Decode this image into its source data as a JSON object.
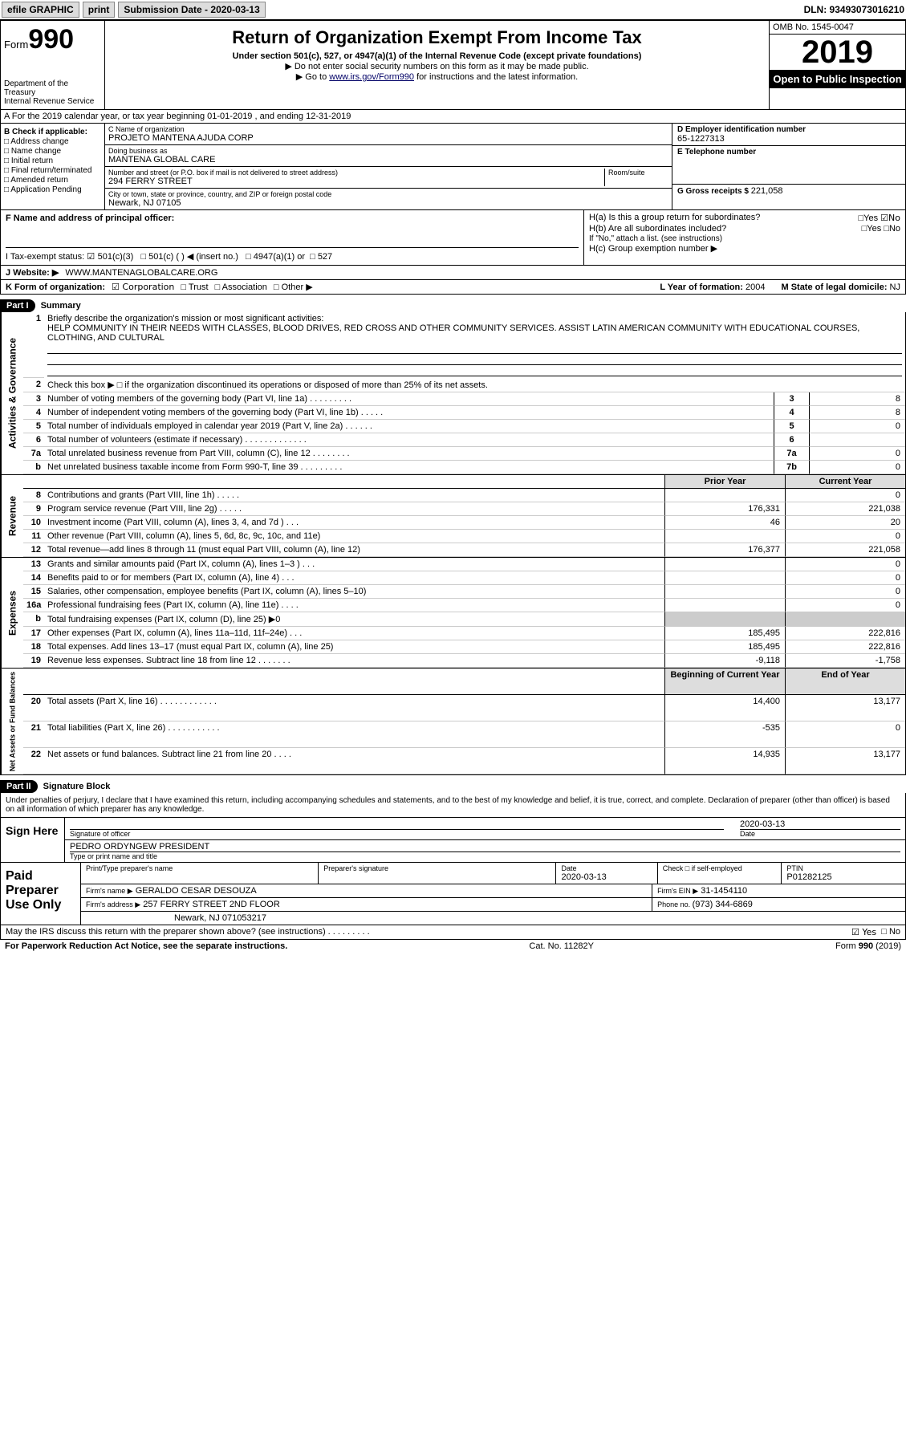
{
  "top": {
    "efile": "efile GRAPHIC",
    "print": "print",
    "sub_label": "Submission Date - ",
    "sub_date": "2020-03-13",
    "dln": "DLN: 93493073016210"
  },
  "header": {
    "form": "Form",
    "formno": "990",
    "dept": "Department of the Treasury\nInternal Revenue Service",
    "title": "Return of Organization Exempt From Income Tax",
    "sub1": "Under section 501(c), 527, or 4947(a)(1) of the Internal Revenue Code (except private foundations)",
    "sub2": "▶ Do not enter social security numbers on this form as it may be made public.",
    "sub3": "▶ Go to ",
    "link": "www.irs.gov/Form990",
    "sub3b": " for instructions and the latest information.",
    "omb": "OMB No. 1545-0047",
    "year": "2019",
    "open": "Open to Public Inspection"
  },
  "row_a": "A For the 2019 calendar year, or tax year beginning 01-01-2019    , and ending 12-31-2019",
  "b": {
    "title": "B Check if applicable:",
    "addr": "Address change",
    "name": "Name change",
    "init": "Initial return",
    "final": "Final return/terminated",
    "amend": "Amended return",
    "app": "Application Pending"
  },
  "c": {
    "name_lbl": "C Name of organization",
    "name": "PROJETO MANTENA AJUDA CORP",
    "dba_lbl": "Doing business as",
    "dba": "MANTENA GLOBAL CARE",
    "street_lbl": "Number and street (or P.O. box if mail is not delivered to street address)",
    "street": "294 FERRY STREET",
    "room_lbl": "Room/suite",
    "city_lbl": "City or town, state or province, country, and ZIP or foreign postal code",
    "city": "Newark, NJ  07105",
    "f_lbl": "F Name and address of principal officer:"
  },
  "d": {
    "lbl": "D Employer identification number",
    "val": "65-1227313"
  },
  "e": {
    "lbl": "E Telephone number",
    "val": ""
  },
  "g": {
    "lbl": "G Gross receipts $ ",
    "val": "221,058"
  },
  "h": {
    "a": "H(a)  Is this a group return for subordinates?",
    "a_yes": "Yes",
    "a_no": "No",
    "b": "H(b)  Are all subordinates included?",
    "b_yes": "Yes",
    "b_no": "No",
    "b_note": "If \"No,\" attach a list. (see instructions)",
    "c": "H(c)  Group exemption number ▶"
  },
  "i": {
    "lbl": "I   Tax-exempt status:",
    "o1": "501(c)(3)",
    "o2": "501(c) (   ) ◀ (insert no.)",
    "o3": "4947(a)(1) or",
    "o4": "527"
  },
  "j": {
    "lbl": "J   Website: ▶",
    "val": "WWW.MANTENAGLOBALCARE.ORG"
  },
  "k": {
    "lbl": "K Form of organization:",
    "o1": "Corporation",
    "o2": "Trust",
    "o3": "Association",
    "o4": "Other ▶",
    "l_lbl": "L Year of formation: ",
    "l_val": "2004",
    "m_lbl": "M State of legal domicile: ",
    "m_val": "NJ"
  },
  "part1": {
    "hdr": "Part I",
    "title": "Summary"
  },
  "mission": {
    "n": "1",
    "lbl": "Briefly describe the organization's mission or most significant activities:",
    "txt": "HELP COMMUNITY IN THEIR NEEDS WITH CLASSES, BLOOD DRIVES, RED CROSS AND OTHER COMMUNITY SERVICES. ASSIST LATIN AMERICAN COMMUNITY WITH EDUCATIONAL COURSES, CLOTHING, AND CULTURAL"
  },
  "ag": {
    "vlabel": "Activities & Governance",
    "rows": [
      {
        "n": "2",
        "d": "Check this box ▶ □  if the organization discontinued its operations or disposed of more than 25% of its net assets.",
        "box": "",
        "v": ""
      },
      {
        "n": "3",
        "d": "Number of voting members of the governing body (Part VI, line 1a)   .    .    .    .    .    .    .    .    .",
        "box": "3",
        "v": "8"
      },
      {
        "n": "4",
        "d": "Number of independent voting members of the governing body (Part VI, line 1b)   .    .    .    .    .",
        "box": "4",
        "v": "8"
      },
      {
        "n": "5",
        "d": "Total number of individuals employed in calendar year 2019 (Part V, line 2a)   .    .    .    .    .    .",
        "box": "5",
        "v": "0"
      },
      {
        "n": "6",
        "d": "Total number of volunteers (estimate if necessary)   .    .    .    .    .    .    .    .    .    .    .    .    .",
        "box": "6",
        "v": ""
      },
      {
        "n": "7a",
        "d": "Total unrelated business revenue from Part VIII, column (C), line 12   .    .    .    .    .    .    .    .",
        "box": "7a",
        "v": "0"
      },
      {
        "n": "b",
        "d": "Net unrelated business taxable income from Form 990-T, line 39   .    .    .    .    .    .    .    .    .",
        "box": "7b",
        "v": "0"
      }
    ]
  },
  "fin_hdr": {
    "py": "Prior Year",
    "cy": "Current Year"
  },
  "rev": {
    "vlabel": "Revenue",
    "rows": [
      {
        "n": "8",
        "d": "Contributions and grants (Part VIII, line 1h)   .    .    .    .    .",
        "py": "",
        "cy": "0"
      },
      {
        "n": "9",
        "d": "Program service revenue (Part VIII, line 2g)   .    .    .    .    .",
        "py": "176,331",
        "cy": "221,038"
      },
      {
        "n": "10",
        "d": "Investment income (Part VIII, column (A), lines 3, 4, and 7d )   .    .    .",
        "py": "46",
        "cy": "20"
      },
      {
        "n": "11",
        "d": "Other revenue (Part VIII, column (A), lines 5, 6d, 8c, 9c, 10c, and 11e)",
        "py": "",
        "cy": "0"
      },
      {
        "n": "12",
        "d": "Total revenue—add lines 8 through 11 (must equal Part VIII, column (A), line 12)",
        "py": "176,377",
        "cy": "221,058"
      }
    ]
  },
  "exp": {
    "vlabel": "Expenses",
    "rows": [
      {
        "n": "13",
        "d": "Grants and similar amounts paid (Part IX, column (A), lines 1–3 )   .    .    .",
        "py": "",
        "cy": "0"
      },
      {
        "n": "14",
        "d": "Benefits paid to or for members (Part IX, column (A), line 4)   .    .    .",
        "py": "",
        "cy": "0"
      },
      {
        "n": "15",
        "d": "Salaries, other compensation, employee benefits (Part IX, column (A), lines 5–10)",
        "py": "",
        "cy": "0"
      },
      {
        "n": "16a",
        "d": "Professional fundraising fees (Part IX, column (A), line 11e)   .    .    .    .",
        "py": "",
        "cy": "0"
      },
      {
        "n": "b",
        "d": "Total fundraising expenses (Part IX, column (D), line 25) ▶0",
        "py": "SHADE",
        "cy": "SHADE"
      },
      {
        "n": "17",
        "d": "Other expenses (Part IX, column (A), lines 11a–11d, 11f–24e)   .    .    .",
        "py": "185,495",
        "cy": "222,816"
      },
      {
        "n": "18",
        "d": "Total expenses. Add lines 13–17 (must equal Part IX, column (A), line 25)",
        "py": "185,495",
        "cy": "222,816"
      },
      {
        "n": "19",
        "d": "Revenue less expenses. Subtract line 18 from line 12 .    .    .    .    .    .    .",
        "py": "-9,118",
        "cy": "-1,758"
      }
    ]
  },
  "na_hdr": {
    "py": "Beginning of Current Year",
    "cy": "End of Year"
  },
  "na": {
    "vlabel": "Net Assets or Fund Balances",
    "rows": [
      {
        "n": "20",
        "d": "Total assets (Part X, line 16)   .    .    .    .    .    .    .    .    .    .    .    .",
        "py": "14,400",
        "cy": "13,177"
      },
      {
        "n": "21",
        "d": "Total liabilities (Part X, line 26)   .    .    .    .    .    .    .    .    .    .    .",
        "py": "-535",
        "cy": "0"
      },
      {
        "n": "22",
        "d": "Net assets or fund balances. Subtract line 21 from line 20   .    .    .    .",
        "py": "14,935",
        "cy": "13,177"
      }
    ]
  },
  "part2": {
    "hdr": "Part II",
    "title": "Signature Block"
  },
  "sig": {
    "decl": "Under penalties of perjury, I declare that I have examined this return, including accompanying schedules and statements, and to the best of my knowledge and belief, it is true, correct, and complete. Declaration of preparer (other than officer) is based on all information of which preparer has any knowledge.",
    "sign_here": "Sign Here",
    "sig_officer": "Signature of officer",
    "date": "2020-03-13",
    "date_lbl": "Date",
    "name": "PEDRO ORDYNGEW  PRESIDENT",
    "name_lbl": "Type or print name and title"
  },
  "prep": {
    "left": "Paid Preparer Use Only",
    "pt_name_lbl": "Print/Type preparer's name",
    "sig_lbl": "Preparer's signature",
    "date_lbl": "Date",
    "date": "2020-03-13",
    "chk_lbl": "Check □ if self-employed",
    "ptin_lbl": "PTIN",
    "ptin": "P01282125",
    "firm_name_lbl": "Firm's name    ▶",
    "firm_name": "GERALDO CESAR DESOUZA",
    "firm_ein_lbl": "Firm's EIN ▶",
    "firm_ein": "31-1454110",
    "firm_addr_lbl": "Firm's address ▶",
    "firm_addr1": "257 FERRY STREET 2ND FLOOR",
    "firm_addr2": "Newark, NJ  071053217",
    "phone_lbl": "Phone no. ",
    "phone": "(973) 344-6869"
  },
  "discuss": {
    "q": "May the IRS discuss this return with the preparer shown above? (see instructions)   .    .    .    .    .    .    .    .    .",
    "yes": "Yes",
    "no": "No"
  },
  "footer": {
    "pra": "For Paperwork Reduction Act Notice, see the separate instructions.",
    "cat": "Cat. No. 11282Y",
    "form": "Form 990 (2019)"
  }
}
